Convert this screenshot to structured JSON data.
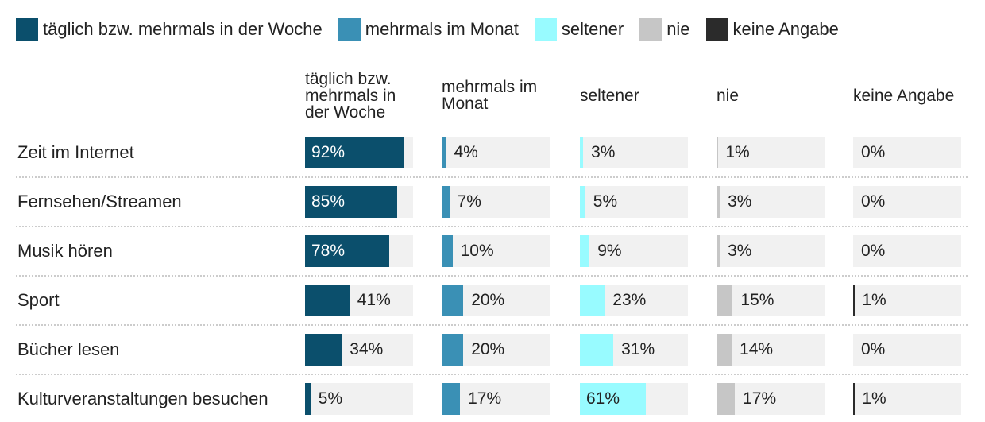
{
  "chart_data": {
    "type": "bar",
    "categories": [
      "Zeit im Internet",
      "Fernsehen/Streamen",
      "Musik hören",
      "Sport",
      "Bücher lesen",
      "Kulturveranstaltungen besuchen"
    ],
    "xlim": [
      0,
      100
    ],
    "series": [
      {
        "name": "täglich bzw. mehrmals in der Woche",
        "color": "#0b4f6c",
        "values": [
          92,
          85,
          78,
          41,
          34,
          5
        ],
        "value_labels": [
          "92%",
          "85%",
          "78%",
          "41%",
          "34%",
          "5%"
        ]
      },
      {
        "name": "mehrmals im Monat",
        "color": "#3a90b5",
        "values": [
          4,
          7,
          10,
          20,
          20,
          17
        ],
        "value_labels": [
          "4%",
          "7%",
          "10%",
          "20%",
          "20%",
          "17%"
        ]
      },
      {
        "name": "seltener",
        "color": "#98fbff",
        "values": [
          3,
          5,
          9,
          23,
          31,
          61
        ],
        "value_labels": [
          "3%",
          "5%",
          "9%",
          "23%",
          "31%",
          "61%"
        ]
      },
      {
        "name": "nie",
        "color": "#c6c6c6",
        "values": [
          1,
          3,
          3,
          15,
          14,
          17
        ],
        "value_labels": [
          "1%",
          "3%",
          "3%",
          "15%",
          "14%",
          "17%"
        ]
      },
      {
        "name": "keine Angabe",
        "color": "#2b2b2b",
        "values": [
          0,
          0,
          0,
          1,
          0,
          1
        ],
        "value_labels": [
          "0%",
          "0%",
          "0%",
          "1%",
          "0%",
          "1%"
        ]
      }
    ]
  }
}
